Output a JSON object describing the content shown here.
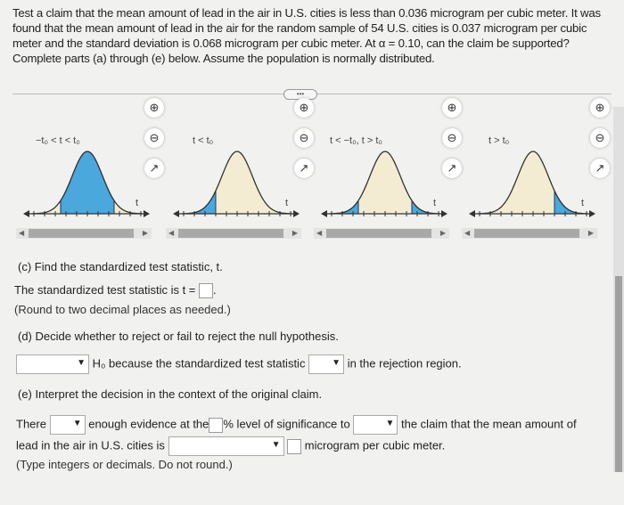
{
  "question": "Test a claim that the mean amount of lead in the air in U.S. cities is less than 0.036 microgram per cubic meter. It was found that the mean amount of lead in the air for the random sample of 54 U.S. cities is 0.037 microgram per cubic meter and the standard deviation is 0.068 microgram per cubic meter. At α = 0.10, can the claim be supported? Complete parts (a) through (e) below. Assume the population is normally distributed.",
  "more_label": "•••",
  "graphs": [
    {
      "label": "−t₀ < t < t₀",
      "shade": "middle",
      "axis": "t"
    },
    {
      "label": "t < t₀",
      "shade": "left",
      "axis": "t"
    },
    {
      "label": "t < −t₀, t > t₀",
      "shade": "two-tail",
      "axis": "t"
    },
    {
      "label": "t > t₀",
      "shade": "right",
      "axis": "t"
    }
  ],
  "icons": {
    "zoom_in": "🔍+",
    "zoom_out": "🔍−",
    "popout": "↗"
  },
  "colors": {
    "shade": "#4aa8dd",
    "curve_fill": "#f3ecd2"
  },
  "part_c": {
    "heading": "(c) Find the standardized test statistic, t.",
    "line_prefix": "The standardized test statistic is t =",
    "line_suffix": ".",
    "note": "(Round to two decimal places as needed.)"
  },
  "part_d": {
    "heading": "(d) Decide whether to reject or fail to reject the null hypothesis.",
    "h0": "H₀",
    "mid": "because the standardized test statistic",
    "end": "in the rejection region."
  },
  "part_e": {
    "heading": "(e) Interpret the decision in the context of the original claim.",
    "t1": "There",
    "t2": "enough evidence at the",
    "t3": "% level of significance to",
    "t4": "the claim that the mean amount of",
    "t5": "lead in the air in U.S. cities is",
    "t6": "microgram per cubic meter.",
    "note": "(Type integers or decimals. Do not round.)"
  }
}
